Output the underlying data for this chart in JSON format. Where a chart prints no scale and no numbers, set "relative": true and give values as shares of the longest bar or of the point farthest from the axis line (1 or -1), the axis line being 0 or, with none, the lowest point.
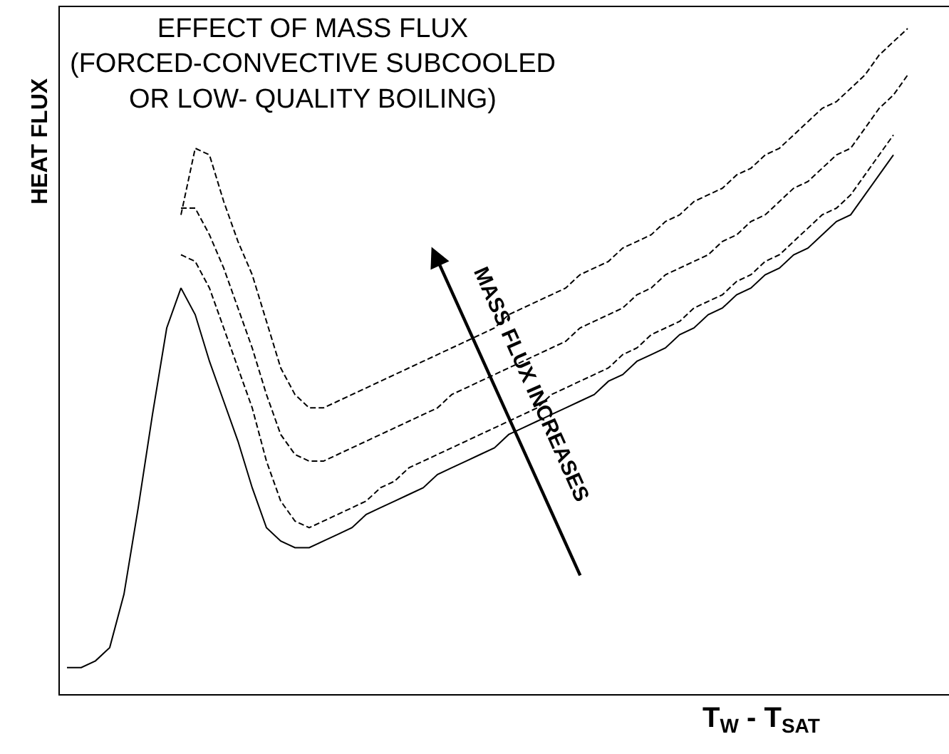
{
  "chart_data": {
    "type": "line",
    "title": "EFFECT OF MASS FLUX\n(FORCED-CONVECTIVE SUBCOOLED\nOR LOW- QUALITY BOILING)",
    "xlabel": "T$_{W}$ - T$_{SAT}$",
    "ylabel": "HEAT FLUX",
    "annotations": [
      "MASS FLUX INCREASES"
    ],
    "relative": true,
    "categories": [
      null,
      null,
      null,
      null,
      null,
      null,
      null,
      null,
      null,
      null,
      null,
      null,
      null,
      null,
      null,
      null,
      null,
      null,
      null,
      null,
      null,
      null,
      null,
      null,
      null,
      null,
      null,
      null,
      null,
      null,
      null,
      null,
      null,
      null,
      null,
      null,
      null,
      null,
      null,
      null,
      null,
      null,
      null,
      null,
      null,
      null,
      null,
      null,
      null,
      null,
      null,
      null,
      null,
      null,
      null,
      null,
      null,
      null,
      null,
      null
    ],
    "series": [
      {
        "color": "#000000",
        "line_style": "solid",
        "values": [
          0.04,
          0.04,
          0.05,
          0.07,
          0.15,
          0.28,
          0.42,
          0.55,
          0.61,
          0.57,
          0.5,
          0.44,
          0.38,
          0.31,
          0.25,
          0.23,
          0.22,
          0.22,
          0.23,
          0.24,
          0.25,
          0.27,
          0.28,
          0.29,
          0.3,
          0.31,
          0.33,
          0.34,
          0.35,
          0.36,
          0.37,
          0.39,
          0.4,
          0.41,
          0.42,
          0.43,
          0.44,
          0.45,
          0.47,
          0.48,
          0.5,
          0.51,
          0.52,
          0.54,
          0.55,
          0.57,
          0.58,
          0.6,
          0.61,
          0.63,
          0.64,
          0.66,
          0.67,
          0.69,
          0.71,
          0.72,
          0.75,
          0.78,
          0.81,
          null
        ]
      },
      {
        "color": "#000000",
        "line_style": "dashed",
        "values": [
          null,
          null,
          null,
          null,
          null,
          null,
          null,
          null,
          0.66,
          0.65,
          0.61,
          0.55,
          0.49,
          0.43,
          0.35,
          0.29,
          0.26,
          0.25,
          0.26,
          0.27,
          0.28,
          0.29,
          0.31,
          0.32,
          0.34,
          0.35,
          0.36,
          0.37,
          0.38,
          0.39,
          0.4,
          0.41,
          0.42,
          0.43,
          0.45,
          0.46,
          0.47,
          0.48,
          0.49,
          0.51,
          0.52,
          0.54,
          0.55,
          0.56,
          0.58,
          0.59,
          0.6,
          0.62,
          0.63,
          0.65,
          0.66,
          0.68,
          0.7,
          0.72,
          0.73,
          0.75,
          0.78,
          0.81,
          0.84,
          null
        ]
      },
      {
        "color": "#000000",
        "line_style": "dashed",
        "values": [
          null,
          null,
          null,
          null,
          null,
          null,
          null,
          null,
          0.73,
          0.73,
          0.69,
          0.64,
          0.58,
          0.52,
          0.45,
          0.39,
          0.36,
          0.35,
          0.35,
          0.36,
          0.37,
          0.38,
          0.39,
          0.4,
          0.41,
          0.42,
          0.43,
          0.45,
          0.46,
          0.47,
          0.48,
          0.49,
          0.5,
          0.51,
          0.52,
          0.53,
          0.55,
          0.56,
          0.57,
          0.58,
          0.6,
          0.61,
          0.63,
          0.64,
          0.65,
          0.66,
          0.68,
          0.69,
          0.71,
          0.72,
          0.74,
          0.76,
          0.77,
          0.79,
          0.81,
          0.82,
          0.85,
          0.88,
          0.9,
          0.93
        ]
      },
      {
        "color": "#000000",
        "line_style": "dashed",
        "values": [
          null,
          null,
          null,
          null,
          null,
          null,
          null,
          null,
          0.72,
          0.82,
          0.81,
          0.74,
          0.68,
          0.63,
          0.56,
          0.49,
          0.45,
          0.43,
          0.43,
          0.44,
          0.45,
          0.46,
          0.47,
          0.48,
          0.49,
          0.5,
          0.51,
          0.52,
          0.53,
          0.54,
          0.55,
          0.57,
          0.58,
          0.59,
          0.6,
          0.61,
          0.63,
          0.64,
          0.65,
          0.67,
          0.68,
          0.69,
          0.71,
          0.72,
          0.74,
          0.75,
          0.76,
          0.78,
          0.79,
          0.81,
          0.82,
          0.84,
          0.86,
          0.88,
          0.89,
          0.91,
          0.93,
          0.96,
          0.98,
          1
        ]
      }
    ]
  }
}
